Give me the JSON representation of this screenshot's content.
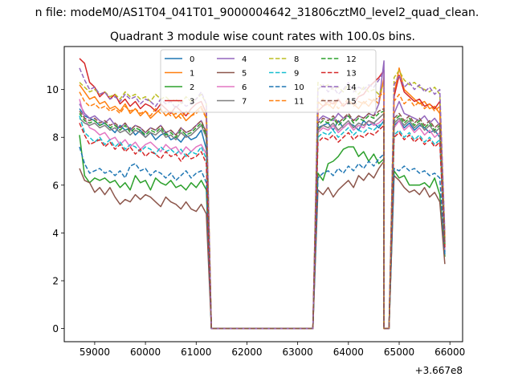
{
  "figure": {
    "suptitle": "n file: modeM0/AS1T04_041T01_9000004642_31806cztM0_level2_quad_clean.",
    "title": "Quadrant 3 module wise count rates with 100.0s bins.",
    "x_offset_label": "+3.667e8"
  },
  "chart_data": {
    "type": "line",
    "title": "Quadrant 3 module wise count rates with 100.0s bins.",
    "xlabel": "",
    "ylabel": "",
    "xlim": [
      58400,
      66250
    ],
    "ylim": [
      -0.55,
      11.8
    ],
    "x_offset": 366700000,
    "x_offset_label": "+3.667e8",
    "xticks": [
      59000,
      60000,
      61000,
      62000,
      63000,
      64000,
      65000,
      66000
    ],
    "yticks": [
      0,
      2,
      4,
      6,
      8,
      10
    ],
    "grid": false,
    "legend": {
      "placement": "upper center",
      "columns": 4
    },
    "segment_a": {
      "x_start": 58700,
      "step": 100,
      "count": 26
    },
    "gap_a": {
      "x_start": 61300,
      "x_end": 63300,
      "value": 0
    },
    "segment_b": {
      "x_start": 63300,
      "step": 100,
      "count": 14
    },
    "dip": {
      "x": [
        64700,
        64800
      ],
      "value": 0
    },
    "segment_c": {
      "x_start": 64900,
      "step": 100,
      "count": 11
    },
    "series": [
      {
        "name": "0",
        "color": "#1f77b4",
        "dash": "solid",
        "a": [
          9.2,
          8.9,
          8.8,
          8.7,
          8.5,
          8.6,
          8.4,
          8.2,
          8.5,
          8.3,
          8.4,
          8.1,
          8.3,
          8.0,
          8.2,
          7.9,
          8.1,
          8.2,
          7.9,
          8.0,
          7.8,
          8.1,
          7.9,
          8.0,
          8.3,
          7.5
        ],
        "b": [
          8.4,
          8.5,
          8.6,
          8.3,
          8.7,
          8.4,
          8.6,
          8.5,
          8.3,
          8.7,
          8.5,
          8.6,
          8.4,
          8.7
        ],
        "c": [
          8.5,
          8.7,
          8.4,
          8.6,
          8.3,
          8.5,
          8.4,
          8.2,
          8.3,
          8.0,
          3.2
        ]
      },
      {
        "name": "1",
        "color": "#ff7f0e",
        "dash": "solid",
        "a": [
          10.2,
          9.9,
          9.6,
          9.7,
          9.4,
          9.5,
          9.2,
          9.3,
          9.1,
          9.4,
          9.0,
          9.2,
          8.9,
          9.1,
          8.8,
          9.0,
          9.2,
          8.9,
          9.1,
          8.8,
          9.0,
          8.7,
          8.9,
          9.1,
          9.3,
          8.8
        ],
        "b": [
          9.5,
          9.3,
          9.4,
          9.2,
          9.6,
          9.3,
          9.5,
          9.4,
          9.2,
          9.5,
          9.3,
          9.6,
          9.4,
          10.5
        ],
        "c": [
          9.8,
          10.9,
          10.0,
          9.8,
          9.6,
          9.4,
          9.5,
          9.2,
          9.3,
          9.0,
          3.5
        ]
      },
      {
        "name": "2",
        "color": "#2ca02c",
        "dash": "solid",
        "a": [
          8.1,
          6.4,
          6.1,
          6.3,
          6.2,
          6.3,
          6.1,
          6.2,
          5.9,
          6.1,
          5.8,
          6.4,
          6.1,
          6.2,
          5.8,
          6.3,
          6.1,
          6.0,
          6.2,
          5.9,
          6.0,
          5.8,
          6.1,
          5.9,
          6.2,
          5.8
        ],
        "b": [
          6.5,
          6.2,
          6.9,
          7.0,
          7.2,
          7.5,
          7.6,
          7.6,
          7.2,
          7.4,
          7.0,
          7.3,
          6.9,
          7.1
        ],
        "c": [
          6.6,
          6.3,
          6.4,
          6.0,
          6.0,
          6.0,
          6.1,
          5.9,
          6.3,
          5.6,
          3.0
        ]
      },
      {
        "name": "3",
        "color": "#d62728",
        "dash": "solid",
        "a": [
          11.3,
          11.1,
          10.3,
          10.1,
          9.7,
          9.9,
          9.6,
          9.8,
          9.4,
          9.6,
          9.3,
          9.5,
          9.2,
          9.4,
          9.3,
          9.1,
          9.4,
          9.2,
          9.0,
          9.3,
          9.1,
          8.9,
          9.2,
          9.4,
          9.5,
          9.0
        ],
        "b": [
          9.1,
          9.3,
          9.5,
          9.4,
          9.6,
          9.3,
          9.5,
          9.4,
          9.7,
          9.8,
          10.1,
          10.3,
          10.5,
          10.8
        ],
        "c": [
          9.7,
          10.6,
          9.9,
          9.7,
          9.5,
          9.6,
          9.3,
          9.4,
          9.2,
          9.5,
          3.6
        ]
      },
      {
        "name": "4",
        "color": "#9467bd",
        "dash": "solid",
        "a": [
          9.4,
          9.0,
          8.8,
          8.9,
          8.7,
          8.6,
          8.8,
          8.5,
          8.4,
          8.6,
          8.3,
          8.5,
          8.4,
          8.2,
          8.4,
          8.3,
          8.5,
          8.2,
          8.3,
          8.1,
          8.4,
          8.2,
          8.3,
          8.5,
          8.7,
          8.2
        ],
        "b": [
          8.7,
          8.9,
          8.8,
          8.7,
          9.0,
          8.8,
          8.9,
          8.7,
          8.9,
          8.8,
          9.0,
          8.9,
          9.4,
          11.2
        ],
        "c": [
          9.0,
          9.5,
          9.0,
          8.9,
          8.8,
          8.7,
          8.9,
          8.6,
          8.8,
          8.5,
          3.6
        ]
      },
      {
        "name": "5",
        "color": "#8c564b",
        "dash": "solid",
        "a": [
          6.7,
          6.2,
          6.1,
          5.7,
          5.9,
          5.6,
          5.9,
          5.5,
          5.2,
          5.4,
          5.3,
          5.6,
          5.4,
          5.6,
          5.5,
          5.3,
          5.1,
          5.5,
          5.3,
          5.2,
          5.0,
          5.3,
          5.0,
          4.9,
          5.2,
          4.8
        ],
        "b": [
          5.8,
          5.6,
          5.9,
          5.5,
          5.8,
          6.0,
          6.2,
          5.9,
          6.4,
          6.2,
          6.5,
          6.3,
          6.7,
          7.0
        ],
        "c": [
          6.4,
          6.2,
          5.9,
          5.7,
          5.8,
          5.6,
          5.9,
          5.5,
          5.7,
          5.3,
          2.7
        ]
      },
      {
        "name": "6",
        "color": "#e377c2",
        "dash": "solid",
        "a": [
          9.6,
          8.8,
          8.4,
          8.3,
          8.1,
          8.2,
          7.9,
          8.0,
          7.7,
          7.9,
          7.6,
          7.8,
          7.5,
          7.7,
          7.8,
          7.6,
          7.4,
          7.7,
          7.5,
          7.6,
          7.3,
          7.6,
          7.4,
          7.6,
          7.7,
          7.3
        ],
        "b": [
          8.2,
          8.4,
          8.3,
          8.5,
          8.2,
          8.4,
          8.6,
          8.3,
          8.5,
          8.4,
          8.7,
          8.5,
          8.6,
          8.8
        ],
        "c": [
          8.4,
          8.7,
          8.3,
          8.5,
          8.2,
          8.4,
          8.1,
          8.3,
          8.0,
          8.2,
          3.3
        ]
      },
      {
        "name": "7",
        "color": "#7f7f7f",
        "dash": "solid",
        "a": [
          8.8,
          8.6,
          8.5,
          8.6,
          8.4,
          8.5,
          8.3,
          8.4,
          8.2,
          8.3,
          8.1,
          8.3,
          8.2,
          8.0,
          8.2,
          8.1,
          8.3,
          8.0,
          8.1,
          7.9,
          8.2,
          8.0,
          8.1,
          8.3,
          8.5,
          8.0
        ],
        "b": [
          8.3,
          8.5,
          8.4,
          8.6,
          8.3,
          8.5,
          8.7,
          8.4,
          8.6,
          8.5,
          8.7,
          8.6,
          8.8,
          9.0
        ],
        "c": [
          8.6,
          8.8,
          8.5,
          8.7,
          8.4,
          8.6,
          8.3,
          8.5,
          8.2,
          8.4,
          3.4
        ]
      },
      {
        "name": "8",
        "color": "#bcbd22",
        "dash": "dashed",
        "a": [
          10.3,
          10.1,
          9.9,
          10.0,
          9.8,
          9.9,
          9.7,
          9.8,
          9.6,
          9.9,
          9.7,
          9.8,
          9.6,
          9.7,
          9.5,
          9.8,
          9.6,
          9.7,
          9.5,
          9.6,
          9.4,
          9.7,
          9.5,
          9.6,
          9.8,
          9.4
        ],
        "b": [
          10.3,
          10.1,
          10.2,
          10.0,
          10.1,
          9.9,
          10.2,
          10.0,
          9.8,
          10.1,
          9.9,
          10.0,
          9.8,
          10.2
        ],
        "c": [
          10.5,
          10.8,
          10.4,
          10.2,
          10.3,
          10.1,
          10.0,
          9.9,
          10.1,
          9.8,
          3.9
        ]
      },
      {
        "name": "9",
        "color": "#17becf",
        "dash": "dashed",
        "a": [
          8.9,
          8.2,
          8.0,
          7.8,
          8.0,
          7.7,
          7.9,
          7.6,
          7.8,
          7.5,
          7.7,
          7.6,
          7.4,
          7.6,
          7.5,
          7.3,
          7.6,
          7.4,
          7.5,
          7.3,
          7.5,
          7.2,
          7.4,
          7.3,
          7.6,
          7.1
        ],
        "b": [
          8.0,
          8.2,
          8.1,
          8.3,
          8.0,
          8.2,
          8.4,
          8.1,
          8.3,
          8.2,
          8.4,
          8.3,
          8.5,
          8.6
        ],
        "c": [
          8.1,
          8.3,
          8.0,
          8.2,
          7.9,
          8.1,
          7.8,
          8.0,
          7.7,
          7.9,
          3.6
        ]
      },
      {
        "name": "10",
        "color": "#1f77b4",
        "dash": "dashed",
        "a": [
          7.6,
          6.9,
          6.5,
          6.6,
          6.7,
          6.5,
          6.6,
          6.4,
          6.6,
          6.3,
          6.8,
          6.9,
          6.6,
          6.7,
          6.4,
          6.6,
          6.5,
          6.3,
          6.5,
          6.2,
          6.4,
          6.6,
          6.3,
          6.5,
          6.6,
          6.1
        ],
        "b": [
          6.3,
          6.5,
          6.6,
          6.4,
          6.7,
          6.5,
          6.8,
          6.6,
          6.9,
          6.7,
          7.0,
          6.8,
          7.1,
          7.3
        ],
        "c": [
          6.7,
          6.6,
          6.8,
          6.6,
          6.7,
          6.5,
          6.6,
          6.4,
          6.5,
          6.3,
          3.1
        ]
      },
      {
        "name": "11",
        "color": "#ff7f0e",
        "dash": "dashed",
        "a": [
          9.9,
          9.5,
          9.3,
          9.4,
          9.2,
          9.3,
          9.1,
          9.2,
          9.0,
          9.3,
          9.1,
          9.2,
          9.0,
          9.1,
          8.9,
          9.2,
          9.0,
          9.1,
          8.9,
          9.0,
          8.8,
          9.1,
          8.9,
          9.0,
          9.2,
          8.8
        ],
        "b": [
          9.4,
          9.6,
          9.3,
          9.5,
          9.2,
          9.4,
          9.6,
          9.3,
          9.5,
          9.4,
          9.6,
          9.5,
          9.7,
          9.9
        ],
        "c": [
          9.5,
          9.8,
          9.4,
          9.6,
          9.3,
          9.5,
          9.2,
          9.4,
          9.1,
          9.3,
          3.8
        ]
      },
      {
        "name": "12",
        "color": "#2ca02c",
        "dash": "dashed",
        "a": [
          9.0,
          8.7,
          8.6,
          8.7,
          8.5,
          8.6,
          8.4,
          8.5,
          8.3,
          8.5,
          8.2,
          8.4,
          8.3,
          8.1,
          8.3,
          8.2,
          8.4,
          8.1,
          8.2,
          8.0,
          8.3,
          8.1,
          8.2,
          8.4,
          8.6,
          8.1
        ],
        "b": [
          8.5,
          8.7,
          8.6,
          8.8,
          8.5,
          8.7,
          8.9,
          8.6,
          8.8,
          8.7,
          8.9,
          8.8,
          9.0,
          9.1
        ],
        "c": [
          8.7,
          8.9,
          8.6,
          8.8,
          8.5,
          8.7,
          8.4,
          8.6,
          8.3,
          8.5,
          3.5
        ]
      },
      {
        "name": "13",
        "color": "#d62728",
        "dash": "dashed",
        "a": [
          8.6,
          8.1,
          7.7,
          7.8,
          7.9,
          7.6,
          7.8,
          7.5,
          7.7,
          7.4,
          7.6,
          7.3,
          7.5,
          7.2,
          7.4,
          7.3,
          7.1,
          7.4,
          7.2,
          7.3,
          7.0,
          7.3,
          7.1,
          7.2,
          7.4,
          6.9
        ],
        "b": [
          7.8,
          8.0,
          7.9,
          8.1,
          7.8,
          8.0,
          8.2,
          7.9,
          8.1,
          8.0,
          8.2,
          8.1,
          8.3,
          8.5
        ],
        "c": [
          8.0,
          8.2,
          7.9,
          8.1,
          7.8,
          8.0,
          7.7,
          7.9,
          7.6,
          7.8,
          3.4
        ]
      },
      {
        "name": "14",
        "color": "#9467bd",
        "dash": "dashed",
        "a": [
          10.9,
          10.4,
          10.0,
          10.1,
          9.8,
          9.9,
          9.6,
          9.7,
          9.5,
          9.8,
          9.6,
          9.7,
          9.4,
          9.6,
          9.5,
          9.3,
          9.6,
          9.4,
          9.5,
          9.2,
          9.5,
          9.3,
          9.4,
          9.6,
          9.9,
          9.4
        ],
        "b": [
          10.0,
          10.2,
          9.9,
          10.1,
          9.8,
          10.0,
          10.3,
          9.9,
          10.1,
          10.0,
          10.2,
          10.1,
          10.4,
          10.8
        ],
        "c": [
          10.2,
          10.6,
          10.1,
          10.3,
          10.0,
          10.2,
          9.9,
          10.1,
          9.8,
          10.0,
          4.0
        ]
      },
      {
        "name": "15",
        "color": "#8c564b",
        "dash": "dashed",
        "a": [
          9.1,
          8.8,
          8.7,
          8.8,
          8.6,
          8.7,
          8.5,
          8.6,
          8.4,
          8.6,
          8.3,
          8.5,
          8.4,
          8.2,
          8.4,
          8.3,
          8.5,
          8.2,
          8.3,
          8.1,
          8.4,
          8.2,
          8.3,
          8.5,
          8.7,
          8.2
        ],
        "b": [
          8.6,
          8.8,
          8.7,
          8.9,
          8.6,
          8.8,
          9.0,
          8.7,
          8.9,
          8.8,
          9.0,
          8.9,
          9.1,
          9.2
        ],
        "c": [
          8.8,
          9.0,
          8.7,
          8.9,
          8.6,
          8.8,
          8.5,
          8.7,
          8.4,
          8.6,
          3.6
        ]
      }
    ]
  }
}
